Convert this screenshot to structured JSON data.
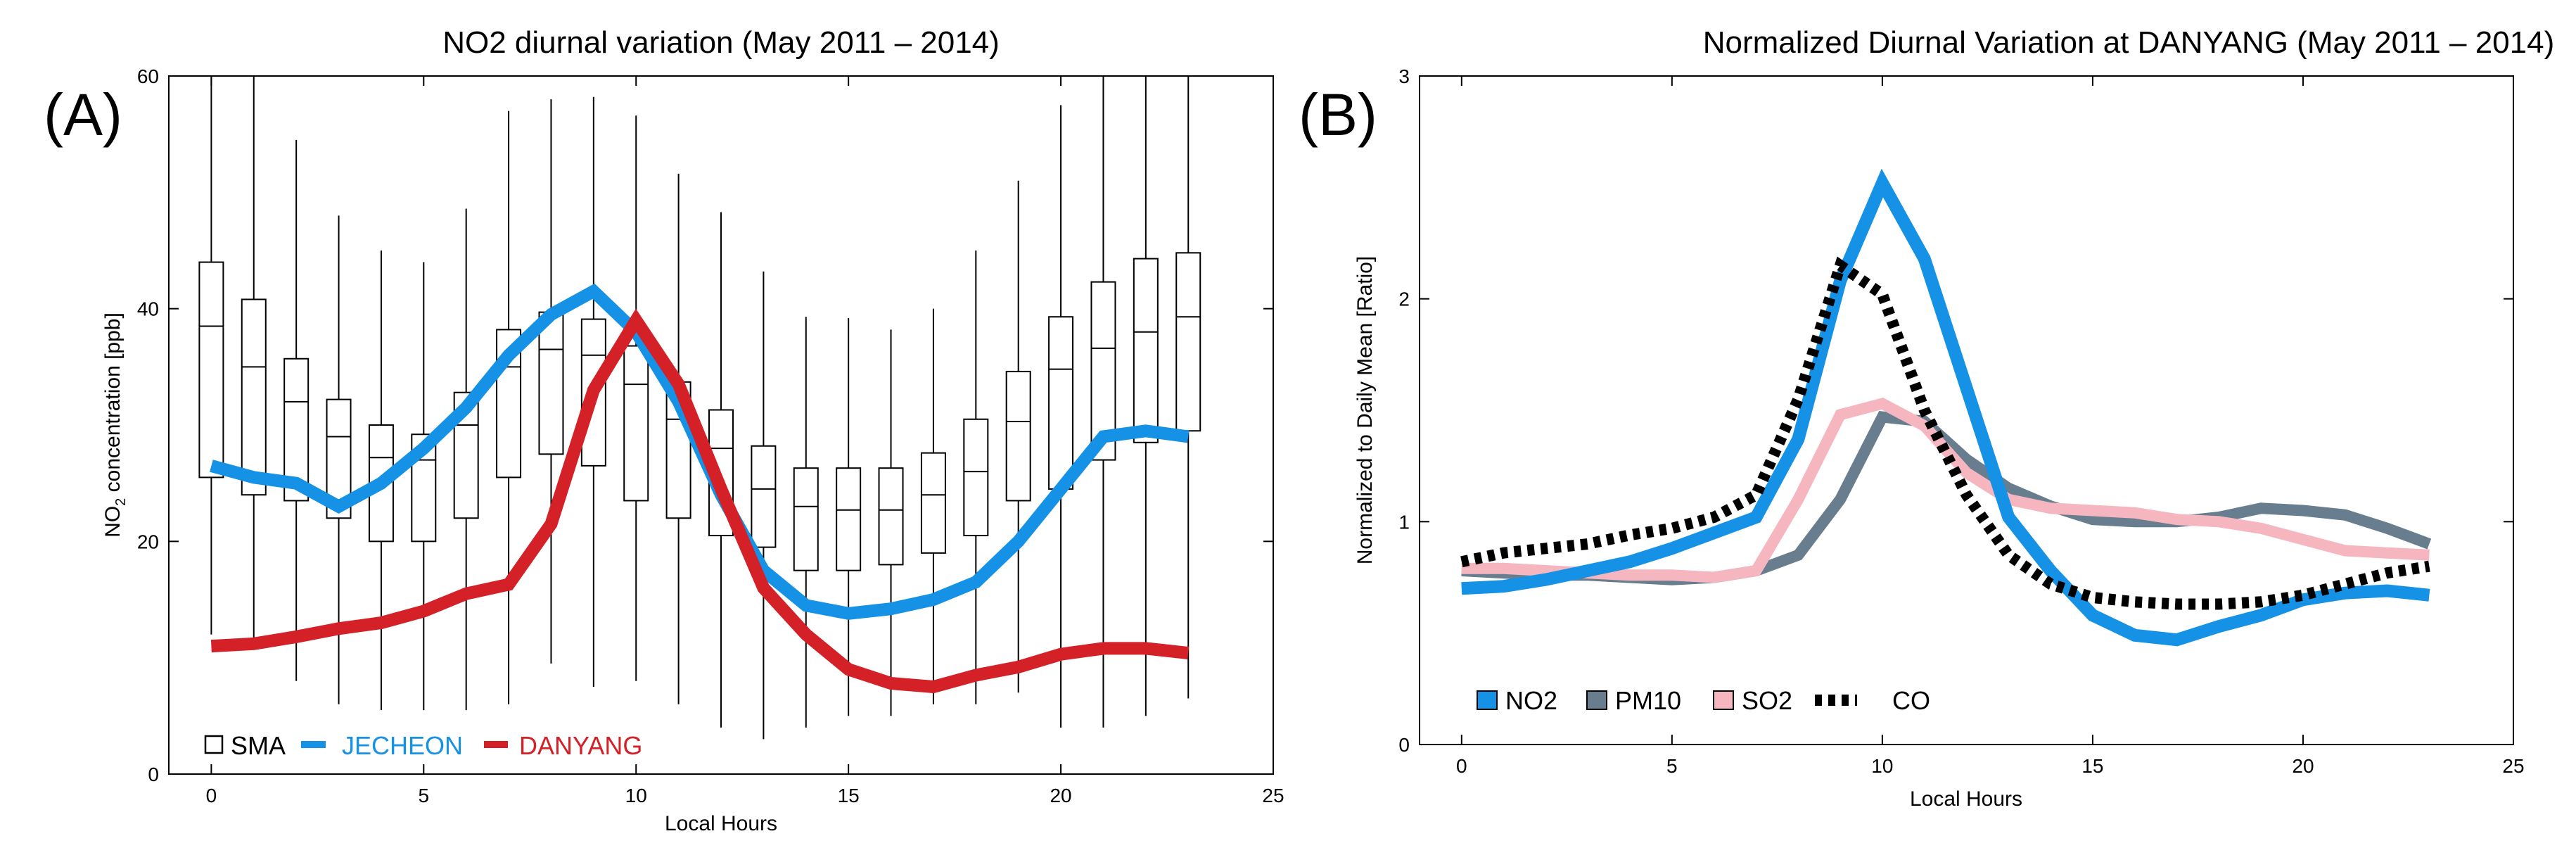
{
  "figure": {
    "panel_a_letter": "(A)",
    "panel_b_letter": "(B)"
  },
  "chart_data": [
    {
      "type": "line",
      "title": "NO2 diurnal variation (May 2011 – 2014)",
      "xlabel": "Local Hours",
      "ylabel": "NO",
      "ylabel_sub": "2",
      "ylabel_rest": " concentration [ppb]",
      "xlim": [
        -1,
        25
      ],
      "ylim": [
        0,
        60
      ],
      "xticks": [
        0,
        5,
        10,
        15,
        20,
        25
      ],
      "yticks": [
        0,
        20,
        40,
        60
      ],
      "boxplot": {
        "name": "SMA",
        "hours": [
          0,
          1,
          2,
          3,
          4,
          5,
          6,
          7,
          8,
          9,
          10,
          11,
          12,
          13,
          14,
          15,
          16,
          17,
          18,
          19,
          20,
          21,
          22,
          23
        ],
        "whisker_low": [
          12,
          11,
          8,
          6,
          5.5,
          5.5,
          5.5,
          6,
          9.5,
          7.5,
          8,
          6,
          4,
          3,
          4,
          5,
          5,
          6,
          6,
          7,
          4,
          4,
          5,
          6.5
        ],
        "q1": [
          25.5,
          24,
          23.5,
          22,
          20,
          20,
          22,
          25.5,
          27.5,
          26.5,
          23.5,
          22,
          20.5,
          19.5,
          17.5,
          17.5,
          18,
          19,
          20.5,
          23.5,
          24.5,
          27,
          28.5,
          29.5
        ],
        "median": [
          38.5,
          35,
          32,
          29,
          27.2,
          27,
          30,
          35,
          36.5,
          36,
          33.5,
          30.5,
          28,
          24.5,
          23,
          22.7,
          22.7,
          24,
          26,
          30.3,
          34.8,
          36.6,
          38,
          39.3
        ],
        "q3": [
          44,
          40.8,
          35.7,
          32.2,
          30,
          29.2,
          32.8,
          38.2,
          39.7,
          39.1,
          36.8,
          33.7,
          31.3,
          28.2,
          26.3,
          26.3,
          26.3,
          27.6,
          30.5,
          34.6,
          39.3,
          42.3,
          44.3,
          44.8
        ],
        "whisker_high": [
          60,
          60,
          54.5,
          48,
          45,
          44,
          48.6,
          57,
          58,
          58.2,
          56.6,
          51.6,
          48.3,
          43.2,
          39.3,
          39.2,
          38.2,
          40,
          45,
          51,
          57.5,
          60,
          60,
          60
        ]
      },
      "series": [
        {
          "name": "JECHEON",
          "color": "#1592e6",
          "x": [
            0,
            1,
            2,
            3,
            4,
            5,
            6,
            7,
            8,
            9,
            10,
            11,
            12,
            13,
            14,
            15,
            16,
            17,
            18,
            19,
            20,
            21,
            22,
            23
          ],
          "values": [
            26.5,
            25.5,
            25,
            23,
            25,
            28,
            31.5,
            36,
            39.5,
            41.5,
            38,
            32,
            24,
            17.5,
            14.5,
            13.8,
            14.2,
            15,
            16.5,
            20,
            24.5,
            29,
            29.5,
            29
          ]
        },
        {
          "name": "DANYANG",
          "color": "#d42027",
          "x": [
            0,
            1,
            2,
            3,
            4,
            5,
            6,
            7,
            8,
            9,
            10,
            11,
            12,
            13,
            14,
            15,
            16,
            17,
            18,
            19,
            20,
            21,
            22,
            23
          ],
          "values": [
            11,
            11.2,
            11.8,
            12.5,
            13,
            14,
            15.5,
            16.3,
            21.5,
            33,
            39,
            33.5,
            24.5,
            16,
            12,
            9,
            7.8,
            7.5,
            8.5,
            9.2,
            10.3,
            10.8,
            10.8,
            10.4
          ]
        }
      ],
      "legend": [
        {
          "label": "SMA",
          "color": "#000000"
        },
        {
          "label": "JECHEON",
          "color": "#1592e6"
        },
        {
          "label": "DANYANG",
          "color": "#d42027"
        }
      ]
    },
    {
      "type": "line",
      "title": "Normalized Diurnal Variation at DANYANG (May 2011 – 2014)",
      "xlabel": "Local Hours",
      "ylabel": "Normalized to Daily Mean [Ratio]",
      "xlim": [
        -1,
        25
      ],
      "ylim": [
        0,
        3
      ],
      "xticks": [
        0,
        5,
        10,
        15,
        20,
        25
      ],
      "yticks": [
        0,
        1,
        2,
        3
      ],
      "series": [
        {
          "name": "PM10",
          "color": "#687d8d",
          "x": [
            0,
            1,
            2,
            3,
            4,
            5,
            6,
            7,
            8,
            9,
            10,
            11,
            12,
            13,
            14,
            15,
            16,
            17,
            18,
            19,
            20,
            21,
            22,
            23
          ],
          "values": [
            0.78,
            0.77,
            0.76,
            0.76,
            0.75,
            0.74,
            0.75,
            0.78,
            0.85,
            1.1,
            1.47,
            1.45,
            1.28,
            1.15,
            1.07,
            1.01,
            1.0,
            1.0,
            1.02,
            1.06,
            1.05,
            1.03,
            0.97,
            0.9
          ]
        },
        {
          "name": "SO2",
          "color": "#f5b6c0",
          "x": [
            0,
            1,
            2,
            3,
            4,
            5,
            6,
            7,
            8,
            9,
            10,
            11,
            12,
            13,
            14,
            15,
            16,
            17,
            18,
            19,
            20,
            21,
            22,
            23
          ],
          "values": [
            0.79,
            0.79,
            0.78,
            0.77,
            0.76,
            0.76,
            0.75,
            0.78,
            1.1,
            1.48,
            1.53,
            1.43,
            1.22,
            1.1,
            1.06,
            1.05,
            1.04,
            1.01,
            1.0,
            0.97,
            0.92,
            0.87,
            0.86,
            0.85
          ]
        },
        {
          "name": "NO2",
          "color": "#1592e6",
          "x": [
            0,
            1,
            2,
            3,
            4,
            5,
            6,
            7,
            8,
            9,
            10,
            11,
            12,
            13,
            14,
            15,
            16,
            17,
            18,
            19,
            20,
            21,
            22,
            23
          ],
          "values": [
            0.7,
            0.71,
            0.74,
            0.78,
            0.82,
            0.88,
            0.95,
            1.02,
            1.37,
            2.08,
            2.52,
            2.18,
            1.6,
            1.02,
            0.78,
            0.58,
            0.49,
            0.47,
            0.53,
            0.58,
            0.65,
            0.68,
            0.69,
            0.67
          ]
        },
        {
          "name": "CO",
          "color": "#000000",
          "dashed": true,
          "x": [
            0,
            1,
            2,
            3,
            4,
            5,
            6,
            7,
            8,
            9,
            10,
            11,
            12,
            13,
            14,
            15,
            16,
            17,
            18,
            19,
            20,
            21,
            22,
            23
          ],
          "values": [
            0.82,
            0.86,
            0.88,
            0.9,
            0.94,
            0.97,
            1.02,
            1.12,
            1.55,
            2.15,
            2.02,
            1.5,
            1.12,
            0.85,
            0.72,
            0.66,
            0.64,
            0.63,
            0.63,
            0.64,
            0.67,
            0.72,
            0.77,
            0.8
          ]
        }
      ],
      "legend": [
        {
          "label": "NO2",
          "color": "#1592e6"
        },
        {
          "label": "PM10",
          "color": "#687d8d"
        },
        {
          "label": "SO2",
          "color": "#f5b6c0"
        },
        {
          "label": "CO",
          "color": "#000000"
        }
      ]
    }
  ]
}
